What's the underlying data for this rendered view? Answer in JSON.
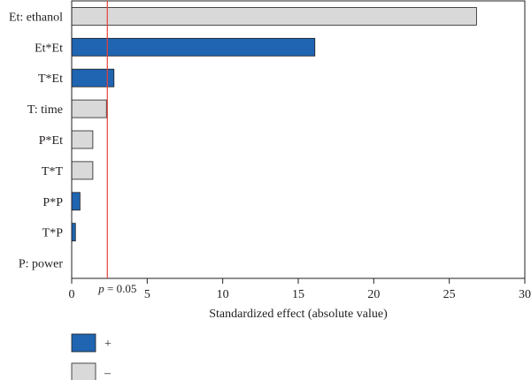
{
  "chart_data": {
    "type": "bar",
    "orientation": "horizontal",
    "categories": [
      "Et: ethanol",
      "Et*Et",
      "T*Et",
      "T: time",
      "P*Et",
      "T*T",
      "P*P",
      "T*P",
      "P: power"
    ],
    "values": [
      26.8,
      16.1,
      2.8,
      2.3,
      1.4,
      1.4,
      0.55,
      0.25,
      0.0
    ],
    "signs": [
      "-",
      "+",
      "+",
      "-",
      "-",
      "-",
      "+",
      "+",
      "-"
    ],
    "xlabel": "Standardized effect (absolute value)",
    "xlim": [
      0,
      30
    ],
    "xticks": [
      "0",
      "5",
      "10",
      "15",
      "20",
      "25",
      "30"
    ],
    "reference_line": {
      "value": 2.36,
      "label_prefix": "p",
      "label_suffix": " = 0.05"
    },
    "legend": [
      {
        "sign": "+",
        "label": "+",
        "color": "#1f65b1"
      },
      {
        "sign": "-",
        "label": "–",
        "color": "#d9d9d9"
      }
    ]
  },
  "colors": {
    "positive": "#1f65b1",
    "negative": "#d9d9d9",
    "bar_edge": "#231f20",
    "reference_line": "#e8413a"
  }
}
